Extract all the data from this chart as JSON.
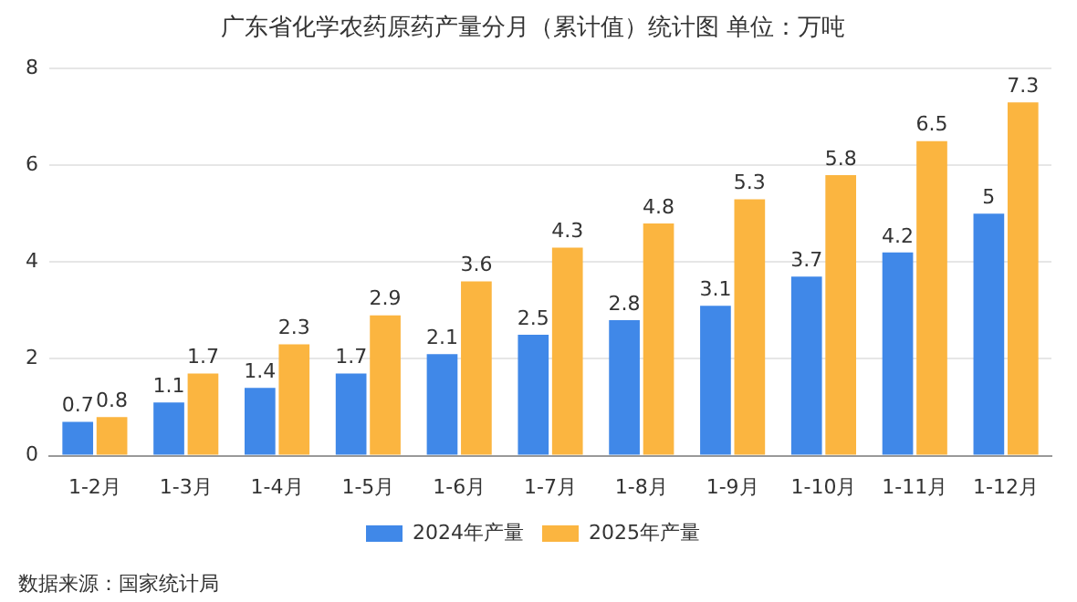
{
  "chart_data": {
    "type": "bar",
    "title": "广东省化学农药原药产量分月（累计值）统计图 单位：万吨",
    "categories": [
      "1-2月",
      "1-3月",
      "1-4月",
      "1-5月",
      "1-6月",
      "1-7月",
      "1-8月",
      "1-9月",
      "1-10月",
      "1-11月",
      "1-12月"
    ],
    "series": [
      {
        "name": "2024年产量",
        "color": "#4088e8",
        "values": [
          0.7,
          1.1,
          1.4,
          1.7,
          2.1,
          2.5,
          2.8,
          3.1,
          3.7,
          4.2,
          5
        ]
      },
      {
        "name": "2025年产量",
        "color": "#fbb540",
        "values": [
          0.8,
          1.7,
          2.3,
          2.9,
          3.6,
          4.3,
          4.8,
          5.3,
          5.8,
          6.5,
          7.3
        ]
      }
    ],
    "ylim": [
      0,
      8
    ],
    "yticks": [
      0,
      2,
      4,
      6,
      8
    ],
    "grid": "y",
    "legend": "bottom",
    "data_labels": true,
    "annotations": [
      "数据来源：国家统计局"
    ]
  }
}
